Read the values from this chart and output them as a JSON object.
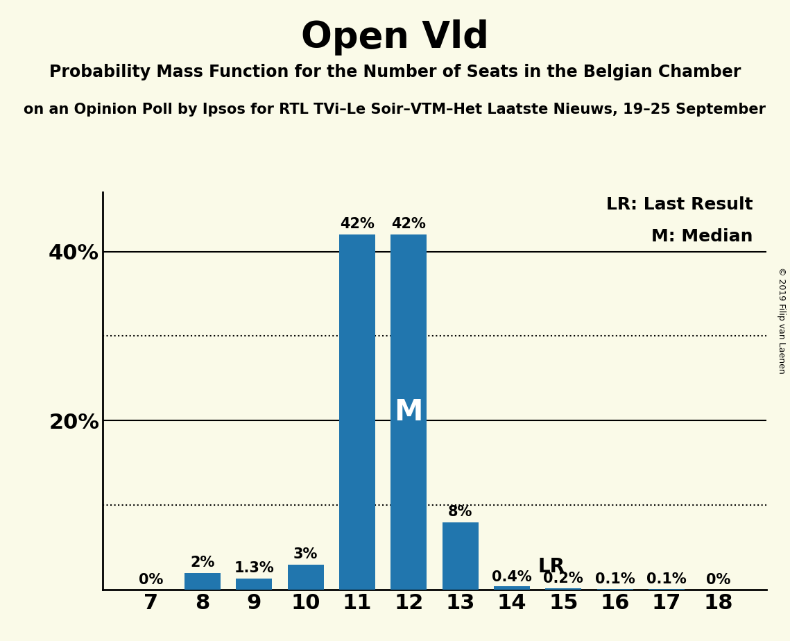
{
  "title": "Open Vld",
  "subtitle": "Probability Mass Function for the Number of Seats in the Belgian Chamber",
  "subsubtitle": "on an Opinion Poll by Ipsos for RTL TVi–Le Soir–VTM–Het Laatste Nieuws, 19–25 September",
  "copyright": "© 2019 Filip van Laenen",
  "categories": [
    7,
    8,
    9,
    10,
    11,
    12,
    13,
    14,
    15,
    16,
    17,
    18
  ],
  "values": [
    0.0,
    0.02,
    0.013,
    0.03,
    0.42,
    0.42,
    0.08,
    0.004,
    0.002,
    0.001,
    0.001,
    0.0
  ],
  "labels": [
    "0%",
    "2%",
    "1.3%",
    "3%",
    "42%",
    "42%",
    "8%",
    "0.4%",
    "0.2%",
    "0.1%",
    "0.1%",
    "0%"
  ],
  "bar_color": "#2176AE",
  "background_color": "#FAFAE8",
  "median_bar": 12,
  "lr_bar": 14,
  "yticks": [
    0.2,
    0.4
  ],
  "ytick_labels": [
    "20%",
    "40%"
  ],
  "ylim": [
    0,
    0.47
  ],
  "solid_lines": [
    0.2,
    0.4
  ],
  "dotted_lines": [
    0.1,
    0.3
  ],
  "legend_lr": "LR: Last Result",
  "legend_m": "M: Median"
}
